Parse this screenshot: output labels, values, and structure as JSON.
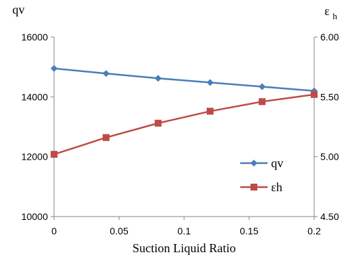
{
  "chart_data": {
    "type": "line",
    "title": "",
    "xlabel": "Suction Liquid Ratio",
    "x": [
      0,
      0.04,
      0.08,
      0.12,
      0.16,
      0.2
    ],
    "xticks": [
      "0",
      "0.05",
      "0.1",
      "0.15",
      "0.2"
    ],
    "xtick_values": [
      0,
      0.05,
      0.1,
      0.15,
      0.2
    ],
    "xlim": [
      0,
      0.2
    ],
    "y_left": {
      "label": "qv",
      "lim": [
        10000,
        16000
      ],
      "ticks": [
        "10000",
        "12000",
        "14000",
        "16000"
      ],
      "tick_values": [
        10000,
        12000,
        14000,
        16000
      ]
    },
    "y_right": {
      "label_main": "ε",
      "label_sub": "h",
      "lim": [
        4.5,
        6.0
      ],
      "ticks": [
        "4.50",
        "5.00",
        "5.50",
        "6.00"
      ],
      "tick_values": [
        4.5,
        5.0,
        5.5,
        6.0
      ]
    },
    "series": [
      {
        "name": "qv",
        "axis": "left",
        "marker": "diamond",
        "color": "#4A7EBB",
        "values": [
          14950,
          14780,
          14620,
          14480,
          14340,
          14200
        ]
      },
      {
        "name": "εh",
        "axis": "right",
        "marker": "square",
        "color": "#BE4B48",
        "values": [
          5.02,
          5.16,
          5.28,
          5.38,
          5.46,
          5.52
        ]
      }
    ],
    "grid": false,
    "legend_position": "bottom-right inside plot"
  }
}
